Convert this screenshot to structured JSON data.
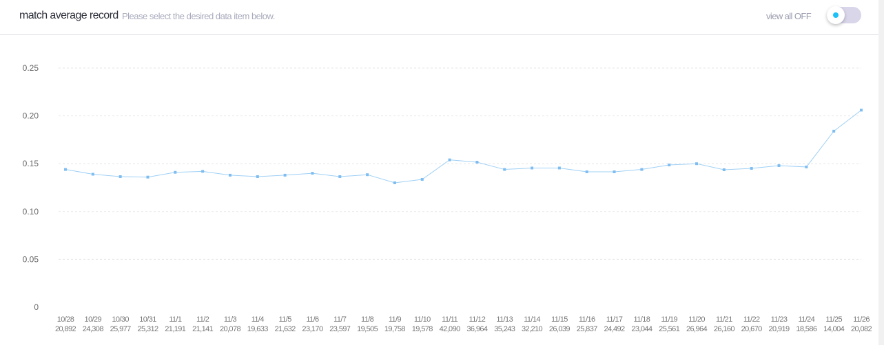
{
  "header": {
    "title": "match average record",
    "subtitle": "Please select the desired data item below.",
    "toggle_label": "view all OFF",
    "toggle_on": false
  },
  "colors": {
    "line": "#9fd0f5",
    "marker": "#7fbdf0",
    "toggle_dot": "#1ec0f5",
    "toggle_track": "#d9d6ea"
  },
  "chart_data": {
    "type": "line",
    "title": "match average record",
    "ylim": [
      0,
      0.25
    ],
    "yticks": [
      "0",
      "0.05",
      "0.10",
      "0.15",
      "0.20",
      "0.25"
    ],
    "grid": true,
    "categories": [
      "10/28",
      "10/29",
      "10/30",
      "10/31",
      "11/1",
      "11/2",
      "11/3",
      "11/4",
      "11/5",
      "11/6",
      "11/7",
      "11/8",
      "11/9",
      "11/10",
      "11/11",
      "11/12",
      "11/13",
      "11/14",
      "11/15",
      "11/16",
      "11/17",
      "11/18",
      "11/19",
      "11/20",
      "11/21",
      "11/22",
      "11/23",
      "11/24",
      "11/25",
      "11/26"
    ],
    "counts": [
      "20,892",
      "24,308",
      "25,977",
      "25,312",
      "21,191",
      "21,141",
      "20,078",
      "19,633",
      "21,632",
      "23,170",
      "23,597",
      "19,505",
      "19,758",
      "19,578",
      "42,090",
      "36,964",
      "35,243",
      "32,210",
      "26,039",
      "25,837",
      "24,492",
      "23,044",
      "25,561",
      "26,964",
      "26,160",
      "20,670",
      "20,919",
      "18,586",
      "14,004",
      "20,082"
    ],
    "values": [
      0.144,
      0.139,
      0.1365,
      0.136,
      0.141,
      0.142,
      0.138,
      0.1365,
      0.138,
      0.14,
      0.1365,
      0.1385,
      0.13,
      0.1336,
      0.154,
      0.1516,
      0.144,
      0.1455,
      0.1455,
      0.1415,
      0.1415,
      0.144,
      0.1487,
      0.15,
      0.1437,
      0.1451,
      0.148,
      0.1466,
      0.184,
      0.206
    ]
  }
}
